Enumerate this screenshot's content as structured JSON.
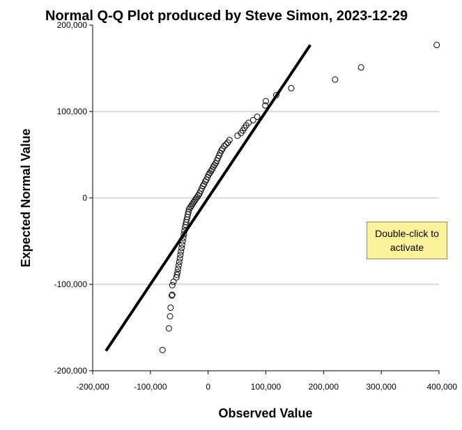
{
  "chart_data": {
    "type": "scatter",
    "title": "Normal Q-Q Plot produced by Steve Simon, 2023-12-29",
    "xlabel": "Observed Value",
    "ylabel": "Expected Normal Value",
    "xlim": [
      -200000,
      400000
    ],
    "ylim": [
      -200000,
      200000
    ],
    "x_ticks": [
      -200000,
      -100000,
      0,
      100000,
      200000,
      300000,
      400000
    ],
    "x_tick_labels": [
      "-200,000",
      "-100,000",
      "0",
      "100,000",
      "200,000",
      "300,000",
      "400,000"
    ],
    "y_ticks": [
      -200000,
      -100000,
      0,
      100000,
      200000
    ],
    "y_tick_labels": [
      "-200,000",
      "-100,000",
      "0",
      "100,000",
      "200,000"
    ],
    "grid": "horizontal",
    "reference_line": {
      "x": [
        -177000,
        177000
      ],
      "y": [
        -177000,
        177000
      ]
    },
    "points": [
      [
        -79000,
        -176000
      ],
      [
        -68000,
        -151000
      ],
      [
        -66000,
        -137000
      ],
      [
        -65000,
        -127000
      ],
      [
        -63000,
        -113000
      ],
      [
        -62000,
        -112000
      ],
      [
        -62000,
        -101000
      ],
      [
        -60000,
        -97000
      ],
      [
        -55000,
        -92000
      ],
      [
        -54000,
        -89000
      ],
      [
        -53000,
        -86000
      ],
      [
        -52000,
        -82000
      ],
      [
        -51000,
        -78000
      ],
      [
        -50000,
        -74000
      ],
      [
        -49000,
        -70000
      ],
      [
        -48000,
        -66000
      ],
      [
        -47000,
        -62000
      ],
      [
        -46000,
        -58000
      ],
      [
        -45000,
        -54000
      ],
      [
        -44000,
        -50000
      ],
      [
        -43000,
        -46000
      ],
      [
        -42000,
        -42000
      ],
      [
        -41000,
        -38000
      ],
      [
        -40000,
        -34000
      ],
      [
        -39000,
        -31000
      ],
      [
        -38000,
        -28000
      ],
      [
        -37000,
        -25000
      ],
      [
        -36000,
        -22000
      ],
      [
        -35000,
        -19000
      ],
      [
        -34000,
        -16000
      ],
      [
        -33000,
        -13000
      ],
      [
        -31000,
        -11000
      ],
      [
        -29000,
        -9000
      ],
      [
        -27000,
        -7000
      ],
      [
        -25000,
        -5000
      ],
      [
        -23000,
        -3000
      ],
      [
        -21000,
        -1000
      ],
      [
        -19000,
        1000
      ],
      [
        -17000,
        3000
      ],
      [
        -15000,
        5000
      ],
      [
        -13000,
        8000
      ],
      [
        -11000,
        11000
      ],
      [
        -9000,
        14000
      ],
      [
        -7000,
        16000
      ],
      [
        -5000,
        19000
      ],
      [
        -3000,
        21000
      ],
      [
        -1000,
        24000
      ],
      [
        1000,
        27000
      ],
      [
        3000,
        29000
      ],
      [
        5000,
        31000
      ],
      [
        7000,
        33000
      ],
      [
        9000,
        36000
      ],
      [
        11000,
        38000
      ],
      [
        13000,
        40000
      ],
      [
        15000,
        43000
      ],
      [
        17000,
        46000
      ],
      [
        19000,
        49000
      ],
      [
        21000,
        52000
      ],
      [
        23000,
        55000
      ],
      [
        25000,
        57000
      ],
      [
        28000,
        60000
      ],
      [
        31000,
        62000
      ],
      [
        34000,
        64000
      ],
      [
        37000,
        67000
      ],
      [
        51000,
        72000
      ],
      [
        57000,
        75000
      ],
      [
        60000,
        78000
      ],
      [
        63000,
        81000
      ],
      [
        66000,
        84000
      ],
      [
        70000,
        87000
      ],
      [
        78000,
        90000
      ],
      [
        85000,
        94000
      ],
      [
        99000,
        107000
      ],
      [
        100000,
        112000
      ],
      [
        118000,
        119000
      ],
      [
        144000,
        127000
      ],
      [
        220000,
        137000
      ],
      [
        265000,
        151000
      ],
      [
        396000,
        177000
      ]
    ]
  },
  "overlay": {
    "activate_text": "Double-click to activate"
  }
}
